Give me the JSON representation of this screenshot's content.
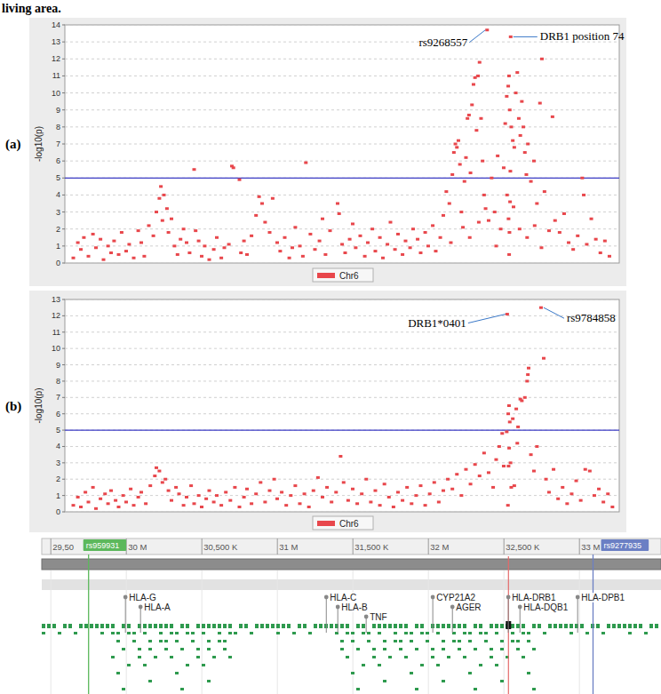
{
  "header": {
    "text": "living area."
  },
  "chart_data": [
    {
      "type": "scatter",
      "panel_label": "(a)",
      "y_label": "-log10(p)",
      "xlim": [
        29.594,
        33.265
      ],
      "ylim": [
        0,
        14
      ],
      "yticks": [
        0,
        1,
        2,
        3,
        4,
        5,
        6,
        7,
        8,
        9,
        10,
        11,
        12,
        13,
        14
      ],
      "grid": true,
      "legend": "bottom",
      "tick_labels": "y",
      "marker": "square",
      "threshold": 5,
      "x": [
        29.65,
        29.68,
        29.7,
        29.72,
        29.75,
        29.78,
        29.8,
        29.83,
        29.85,
        29.88,
        29.9,
        29.92,
        29.95,
        29.97,
        30.0,
        30.02,
        30.05,
        30.08,
        30.1,
        30.12,
        30.15,
        30.18,
        30.2,
        30.22,
        30.23,
        30.24,
        30.25,
        30.27,
        30.28,
        30.3,
        30.32,
        30.34,
        30.36,
        30.38,
        30.4,
        30.42,
        30.45,
        30.46,
        30.48,
        30.5,
        30.52,
        30.55,
        30.58,
        30.6,
        30.63,
        30.65,
        30.68,
        30.7,
        30.71,
        30.75,
        30.76,
        30.78,
        30.8,
        30.83,
        30.86,
        30.88,
        30.9,
        30.92,
        30.95,
        30.97,
        31.0,
        31.02,
        31.05,
        31.08,
        31.1,
        31.12,
        31.15,
        31.17,
        31.19,
        31.22,
        31.25,
        31.28,
        31.3,
        31.32,
        31.35,
        31.4,
        31.41,
        31.43,
        31.45,
        31.48,
        31.5,
        31.52,
        31.55,
        31.58,
        31.6,
        31.63,
        31.65,
        31.68,
        31.7,
        31.73,
        31.75,
        31.78,
        31.8,
        31.83,
        31.85,
        31.88,
        31.9,
        31.93,
        31.95,
        31.98,
        32.0,
        32.03,
        32.05,
        32.08,
        32.1,
        32.12,
        32.14,
        32.15,
        32.16,
        32.17,
        32.18,
        32.19,
        32.2,
        32.21,
        32.22,
        32.23,
        32.24,
        32.25,
        32.26,
        32.27,
        32.275,
        32.28,
        32.29,
        32.3,
        32.31,
        32.32,
        32.33,
        32.335,
        32.34,
        32.35,
        32.36,
        32.37,
        32.38,
        32.39,
        32.4,
        32.42,
        32.44,
        32.45,
        32.46,
        32.48,
        32.5,
        32.51,
        32.52,
        32.522,
        32.53,
        32.532,
        32.535,
        32.536,
        32.538,
        32.54,
        32.542,
        32.544,
        32.546,
        32.55,
        32.56,
        32.565,
        32.57,
        32.58,
        32.59,
        32.6,
        32.605,
        32.61,
        32.62,
        32.63,
        32.64,
        32.65,
        32.655,
        32.66,
        32.68,
        32.7,
        32.705,
        32.72,
        32.74,
        32.75,
        32.753,
        32.77,
        32.8,
        32.823,
        32.84,
        32.87,
        32.9,
        32.93,
        32.96,
        32.99,
        33.02,
        33.03,
        33.05,
        33.08,
        33.11,
        33.14,
        33.17,
        33.2
      ],
      "series": [
        {
          "name": "Chr6",
          "color": "#e8474c",
          "values": [
            0.3,
            1.2,
            0.8,
            1.5,
            0.4,
            1.7,
            0.9,
            1.4,
            0.2,
            1.0,
            0.6,
            1.3,
            0.5,
            1.8,
            0.7,
            1.1,
            0.3,
            1.9,
            1.2,
            0.4,
            2.2,
            1.6,
            3.0,
            3.8,
            4.5,
            2.5,
            4.0,
            3.2,
            1.8,
            2.6,
            1.0,
            0.5,
            1.4,
            2.0,
            1.2,
            0.6,
            5.5,
            1.9,
            1.3,
            0.4,
            1.0,
            0.2,
            0.8,
            1.5,
            0.3,
            0.9,
            1.1,
            5.7,
            5.6,
            4.9,
            0.6,
            1.3,
            0.5,
            1.6,
            2.8,
            3.9,
            3.5,
            2.4,
            1.8,
            3.8,
            1.2,
            0.7,
            1.5,
            0.3,
            0.9,
            2.1,
            1.0,
            0.4,
            5.9,
            1.7,
            0.8,
            1.3,
            2.6,
            0.5,
            1.9,
            3.5,
            2.9,
            1.1,
            0.6,
            1.4,
            2.3,
            0.9,
            1.6,
            0.4,
            1.2,
            2.0,
            0.7,
            1.5,
            0.3,
            1.1,
            2.4,
            0.8,
            1.7,
            0.5,
            1.3,
            0.9,
            2.0,
            1.4,
            0.6,
            1.8,
            1.0,
            2.2,
            0.7,
            1.5,
            2.8,
            4.2,
            3.5,
            1.2,
            5.2,
            6.5,
            7.0,
            6.8,
            7.2,
            5.8,
            3.0,
            2.1,
            4.8,
            6.2,
            8.5,
            8.7,
            1.5,
            5.3,
            9.3,
            10.5,
            10.9,
            7.8,
            11.0,
            2.4,
            11.8,
            8.5,
            6.0,
            4.0,
            3.2,
            13.7,
            2.5,
            5.0,
            3.0,
            1.0,
            6.3,
            2.0,
            5.6,
            8.2,
            9.8,
            4.0,
            10.4,
            2.6,
            11.0,
            0.5,
            1.8,
            9.0,
            3.6,
            5.4,
            13.3,
            8.0,
            7.2,
            3.3,
            6.8,
            10.0,
            11.2,
            8.5,
            2.0,
            7.5,
            9.5,
            8.0,
            6.5,
            5.2,
            1.5,
            7.0,
            4.8,
            6.0,
            2.2,
            3.5,
            9.4,
            0.9,
            12.0,
            4.2,
            1.9,
            8.6,
            2.5,
            1.8,
            2.9,
            1.2,
            0.8,
            1.6,
            5.0,
            4.0,
            1.1,
            2.6,
            1.4,
            0.6,
            1.3,
            0.4
          ]
        }
      ],
      "annotations": [
        {
          "text": "rs9268557",
          "x": 32.39,
          "y": 13.7
        },
        {
          "text": "DRB1 position 74",
          "x": 32.546,
          "y": 13.3
        }
      ]
    },
    {
      "type": "scatter",
      "panel_label": "(b)",
      "y_label": "-log10(p)",
      "xlim": [
        29.594,
        33.265
      ],
      "ylim": [
        0,
        13
      ],
      "yticks": [
        0,
        1,
        2,
        3,
        4,
        5,
        6,
        7,
        8,
        9,
        10,
        11,
        12,
        13
      ],
      "grid": true,
      "legend": "bottom",
      "tick_labels": "y",
      "marker": "square",
      "threshold": 5,
      "x": [
        29.65,
        29.68,
        29.7,
        29.73,
        29.75,
        29.78,
        29.8,
        29.83,
        29.86,
        29.88,
        29.9,
        29.93,
        29.95,
        29.98,
        30.0,
        30.03,
        30.05,
        30.08,
        30.1,
        30.13,
        30.16,
        30.19,
        30.2,
        30.22,
        30.24,
        30.26,
        30.28,
        30.3,
        30.33,
        30.35,
        30.38,
        30.4,
        30.43,
        30.45,
        30.48,
        30.5,
        30.53,
        30.55,
        30.58,
        30.6,
        30.63,
        30.66,
        30.69,
        30.72,
        30.75,
        30.78,
        30.8,
        30.83,
        30.86,
        30.89,
        30.92,
        30.95,
        30.98,
        31.0,
        31.03,
        31.06,
        31.09,
        31.12,
        31.15,
        31.18,
        31.21,
        31.24,
        31.27,
        31.3,
        31.33,
        31.36,
        31.39,
        31.42,
        31.44,
        31.47,
        31.5,
        31.53,
        31.56,
        31.59,
        31.62,
        31.65,
        31.68,
        31.71,
        31.74,
        31.77,
        31.8,
        31.83,
        31.86,
        31.89,
        31.92,
        31.95,
        31.98,
        32.01,
        32.04,
        32.07,
        32.1,
        32.13,
        32.16,
        32.19,
        32.22,
        32.25,
        32.28,
        32.31,
        32.34,
        32.37,
        32.4,
        32.43,
        32.45,
        32.47,
        32.49,
        32.5,
        32.52,
        32.523,
        32.528,
        32.53,
        32.532,
        32.535,
        32.536,
        32.54,
        32.545,
        32.55,
        32.56,
        32.57,
        32.583,
        32.59,
        32.595,
        32.61,
        32.62,
        32.64,
        32.655,
        32.66,
        32.665,
        32.68,
        32.7,
        32.72,
        32.747,
        32.765,
        32.78,
        32.8,
        32.83,
        32.86,
        32.89,
        32.92,
        32.95,
        32.98,
        33.01,
        33.04,
        33.07,
        33.1,
        33.13,
        33.16,
        33.19,
        33.22
      ],
      "series": [
        {
          "name": "Chr6",
          "color": "#e8474c",
          "values": [
            0.4,
            0.9,
            0.3,
            1.2,
            0.6,
            1.5,
            0.2,
            0.8,
            1.1,
            0.5,
            1.3,
            0.7,
            0.3,
            1.0,
            0.6,
            1.4,
            0.4,
            0.9,
            1.2,
            0.5,
            1.6,
            2.2,
            2.7,
            2.5,
            1.8,
            2.0,
            1.3,
            0.7,
            1.5,
            1.1,
            0.4,
            0.9,
            1.6,
            0.5,
            1.0,
            0.3,
            0.8,
            1.3,
            0.6,
            1.0,
            0.4,
            1.2,
            0.7,
            1.5,
            0.3,
            0.9,
            1.4,
            0.5,
            1.1,
            1.8,
            0.6,
            1.3,
            2.0,
            0.8,
            1.2,
            0.4,
            1.0,
            1.6,
            0.5,
            1.1,
            0.3,
            1.3,
            2.1,
            0.9,
            1.5,
            0.6,
            1.2,
            3.4,
            1.8,
            0.7,
            1.4,
            0.5,
            1.1,
            2.0,
            0.6,
            1.3,
            0.4,
            1.7,
            0.9,
            0.3,
            1.2,
            0.7,
            1.5,
            0.5,
            1.0,
            1.6,
            0.4,
            1.1,
            1.8,
            0.6,
            1.3,
            2.0,
            1.4,
            2.3,
            1.0,
            2.6,
            1.7,
            2.9,
            2.2,
            3.6,
            2.4,
            1.5,
            3.2,
            4.0,
            4.8,
            2.8,
            4.9,
            12.1,
            0.4,
            6.0,
            2.8,
            6.5,
            3.9,
            5.5,
            3.0,
            1.5,
            5.7,
            1.6,
            6.3,
            4.2,
            5.2,
            6.9,
            6.8,
            7.0,
            8.0,
            8.4,
            8.8,
            3.5,
            2.5,
            4.0,
            12.5,
            9.4,
            2.0,
            1.2,
            2.6,
            0.8,
            1.5,
            0.5,
            1.1,
            1.9,
            0.7,
            2.6,
            2.5,
            1.0,
            1.4,
            0.6,
            1.1,
            0.3
          ]
        }
      ],
      "annotations": [
        {
          "text": "DRB1*0401",
          "x": 32.523,
          "y": 12.1
        },
        {
          "text": "rs9784858",
          "x": 32.747,
          "y": 12.5
        }
      ]
    }
  ],
  "genome_track": {
    "xlim": [
      29.44,
      33.54
    ],
    "ticks": [
      {
        "value": 29.5,
        "label": "29,50"
      },
      {
        "value": 30,
        "label": "30 M"
      },
      {
        "value": 30.5,
        "label": "30,500 K"
      },
      {
        "value": 31,
        "label": "31 M"
      },
      {
        "value": 31.5,
        "label": "31,500 K"
      },
      {
        "value": 32,
        "label": "32 M"
      },
      {
        "value": 32.5,
        "label": "32,500 K"
      },
      {
        "value": 33,
        "label": "33 M"
      }
    ],
    "markers": [
      {
        "label": "rs959931",
        "position": 29.75,
        "color": "#5cb85c"
      },
      {
        "label": "rs9277935",
        "position": 33.09,
        "color": "#6b7fc4"
      }
    ],
    "highlight": 32.53,
    "genes": [
      {
        "name": "HLA-G",
        "position": 29.994
      },
      {
        "name": "HLA-A",
        "position": 30.094
      },
      {
        "name": "HLA-C",
        "position": 31.324
      },
      {
        "name": "HLA-B",
        "position": 31.4
      },
      {
        "name": "TNF",
        "position": 31.588
      },
      {
        "name": "CYP21A2",
        "position": 32.029
      },
      {
        "name": "AGER",
        "position": 32.159
      },
      {
        "name": "HLA-DRB1",
        "position": 32.529
      },
      {
        "name": "HLA-DQB1",
        "position": 32.606
      },
      {
        "name": "HLA-DPB1",
        "position": 32.988
      }
    ]
  }
}
